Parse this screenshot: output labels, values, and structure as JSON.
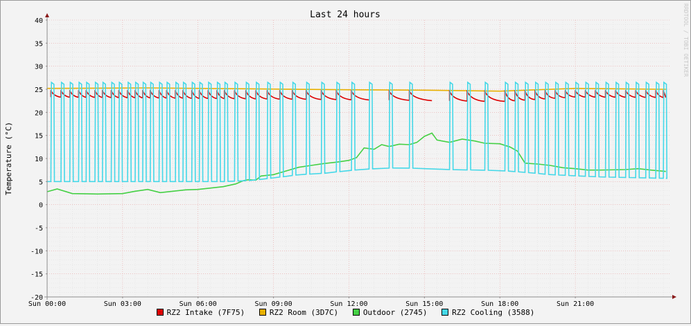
{
  "chart_data": {
    "type": "line",
    "title": "Last 24 hours",
    "ylabel": "Temperature (°C)",
    "watermark": "RRDTOOL / TOBI OETIKER",
    "ylim": [
      -20,
      40
    ],
    "ytick_values": [
      40,
      35,
      30,
      25,
      20,
      15,
      10,
      5,
      0,
      -5,
      -10,
      -15,
      -20
    ],
    "xlim_hours": [
      0,
      24.8
    ],
    "xtick_hours": [
      0,
      3,
      6,
      9,
      12,
      15,
      18,
      21
    ],
    "xtick_labels": [
      "Sun 00:00",
      "Sun 03:00",
      "Sun 06:00",
      "Sun 09:00",
      "Sun 12:00",
      "Sun 15:00",
      "Sun 18:00",
      "Sun 21:00"
    ],
    "grid": true,
    "legend_position": "bottom",
    "series": [
      {
        "name": "RZ2 Intake (7F75)",
        "color": "#dd0000",
        "mode": "cycling",
        "points": [
          [
            0,
            23.3
          ],
          [
            12.6,
            22.7
          ],
          [
            16,
            22.5
          ],
          [
            18,
            22.3
          ],
          [
            21,
            23.3
          ],
          [
            24.6,
            23.2
          ]
        ],
        "peak": 24.8,
        "gaps": [
          [
            12.6,
            13.0
          ],
          [
            15.5,
            16.0
          ]
        ]
      },
      {
        "name": "RZ2 Room (3D7C)",
        "color": "#e8b000",
        "points": [
          [
            0,
            25.2
          ],
          [
            4,
            25.3
          ],
          [
            8,
            25.1
          ],
          [
            12,
            24.9
          ],
          [
            15,
            24.8
          ],
          [
            18,
            24.6
          ],
          [
            21,
            25.2
          ],
          [
            24.6,
            25.0
          ]
        ]
      },
      {
        "name": "Outdoor (2745)",
        "color": "#44d044",
        "points": [
          [
            0,
            2.8
          ],
          [
            0.4,
            3.4
          ],
          [
            1,
            2.4
          ],
          [
            2,
            2.3
          ],
          [
            3,
            2.4
          ],
          [
            3.5,
            2.9
          ],
          [
            4,
            3.3
          ],
          [
            4.5,
            2.6
          ],
          [
            5,
            2.9
          ],
          [
            5.5,
            3.2
          ],
          [
            6,
            3.3
          ],
          [
            6.5,
            3.6
          ],
          [
            7,
            3.9
          ],
          [
            7.5,
            4.5
          ],
          [
            7.8,
            5.2
          ],
          [
            8.0,
            5.4
          ],
          [
            8.3,
            5.3
          ],
          [
            8.5,
            6.2
          ],
          [
            9,
            6.5
          ],
          [
            9.5,
            7.3
          ],
          [
            10,
            8.1
          ],
          [
            10.5,
            8.5
          ],
          [
            11,
            8.9
          ],
          [
            11.5,
            9.2
          ],
          [
            12,
            9.6
          ],
          [
            12.3,
            10.2
          ],
          [
            12.6,
            12.3
          ],
          [
            13,
            12.0
          ],
          [
            13.3,
            13.0
          ],
          [
            13.6,
            12.6
          ],
          [
            14,
            13.1
          ],
          [
            14.4,
            13.0
          ],
          [
            14.7,
            13.5
          ],
          [
            15,
            14.8
          ],
          [
            15.3,
            15.5
          ],
          [
            15.5,
            14.0
          ],
          [
            16,
            13.5
          ],
          [
            16.5,
            14.2
          ],
          [
            17,
            13.8
          ],
          [
            17.4,
            13.3
          ],
          [
            18,
            13.2
          ],
          [
            18.4,
            12.5
          ],
          [
            18.7,
            11.6
          ],
          [
            19,
            9.0
          ],
          [
            19.5,
            8.8
          ],
          [
            20,
            8.5
          ],
          [
            20.5,
            8.0
          ],
          [
            21,
            7.8
          ],
          [
            21.5,
            7.5
          ],
          [
            22,
            7.5
          ],
          [
            23,
            7.6
          ],
          [
            23.5,
            7.8
          ],
          [
            24,
            7.5
          ],
          [
            24.6,
            7.2
          ]
        ]
      },
      {
        "name": "RZ2 Cooling (3588)",
        "color": "#44d8e8",
        "mode": "cycling",
        "base_points": [
          [
            0,
            5.0
          ],
          [
            7,
            5.0
          ],
          [
            8,
            5.2
          ],
          [
            9,
            5.8
          ],
          [
            10,
            6.5
          ],
          [
            11,
            6.8
          ],
          [
            12,
            7.4
          ],
          [
            13,
            7.8
          ],
          [
            14,
            8.0
          ],
          [
            15,
            7.8
          ],
          [
            16,
            7.6
          ],
          [
            17,
            7.5
          ],
          [
            18,
            7.4
          ],
          [
            19,
            7.0
          ],
          [
            20,
            6.5
          ],
          [
            22,
            6.0
          ],
          [
            24.6,
            5.7
          ]
        ],
        "peak": 26.5,
        "cycle_times": [
          0.15,
          0.55,
          0.9,
          1.25,
          1.55,
          1.9,
          2.2,
          2.55,
          2.85,
          3.2,
          3.5,
          3.8,
          4.1,
          4.45,
          4.75,
          5.1,
          5.4,
          5.75,
          6.05,
          6.4,
          6.75,
          7.05,
          7.45,
          7.9,
          8.3,
          8.75,
          9.25,
          9.75,
          10.3,
          10.9,
          11.5,
          12.1,
          12.8,
          13.6,
          14.4,
          16.0,
          16.7,
          17.4,
          18.2,
          18.6,
          19.0,
          19.4,
          19.8,
          20.2,
          20.6,
          21.0,
          21.4,
          21.8,
          22.2,
          22.6,
          23.0,
          23.4,
          23.8,
          24.2,
          24.5
        ]
      }
    ]
  }
}
